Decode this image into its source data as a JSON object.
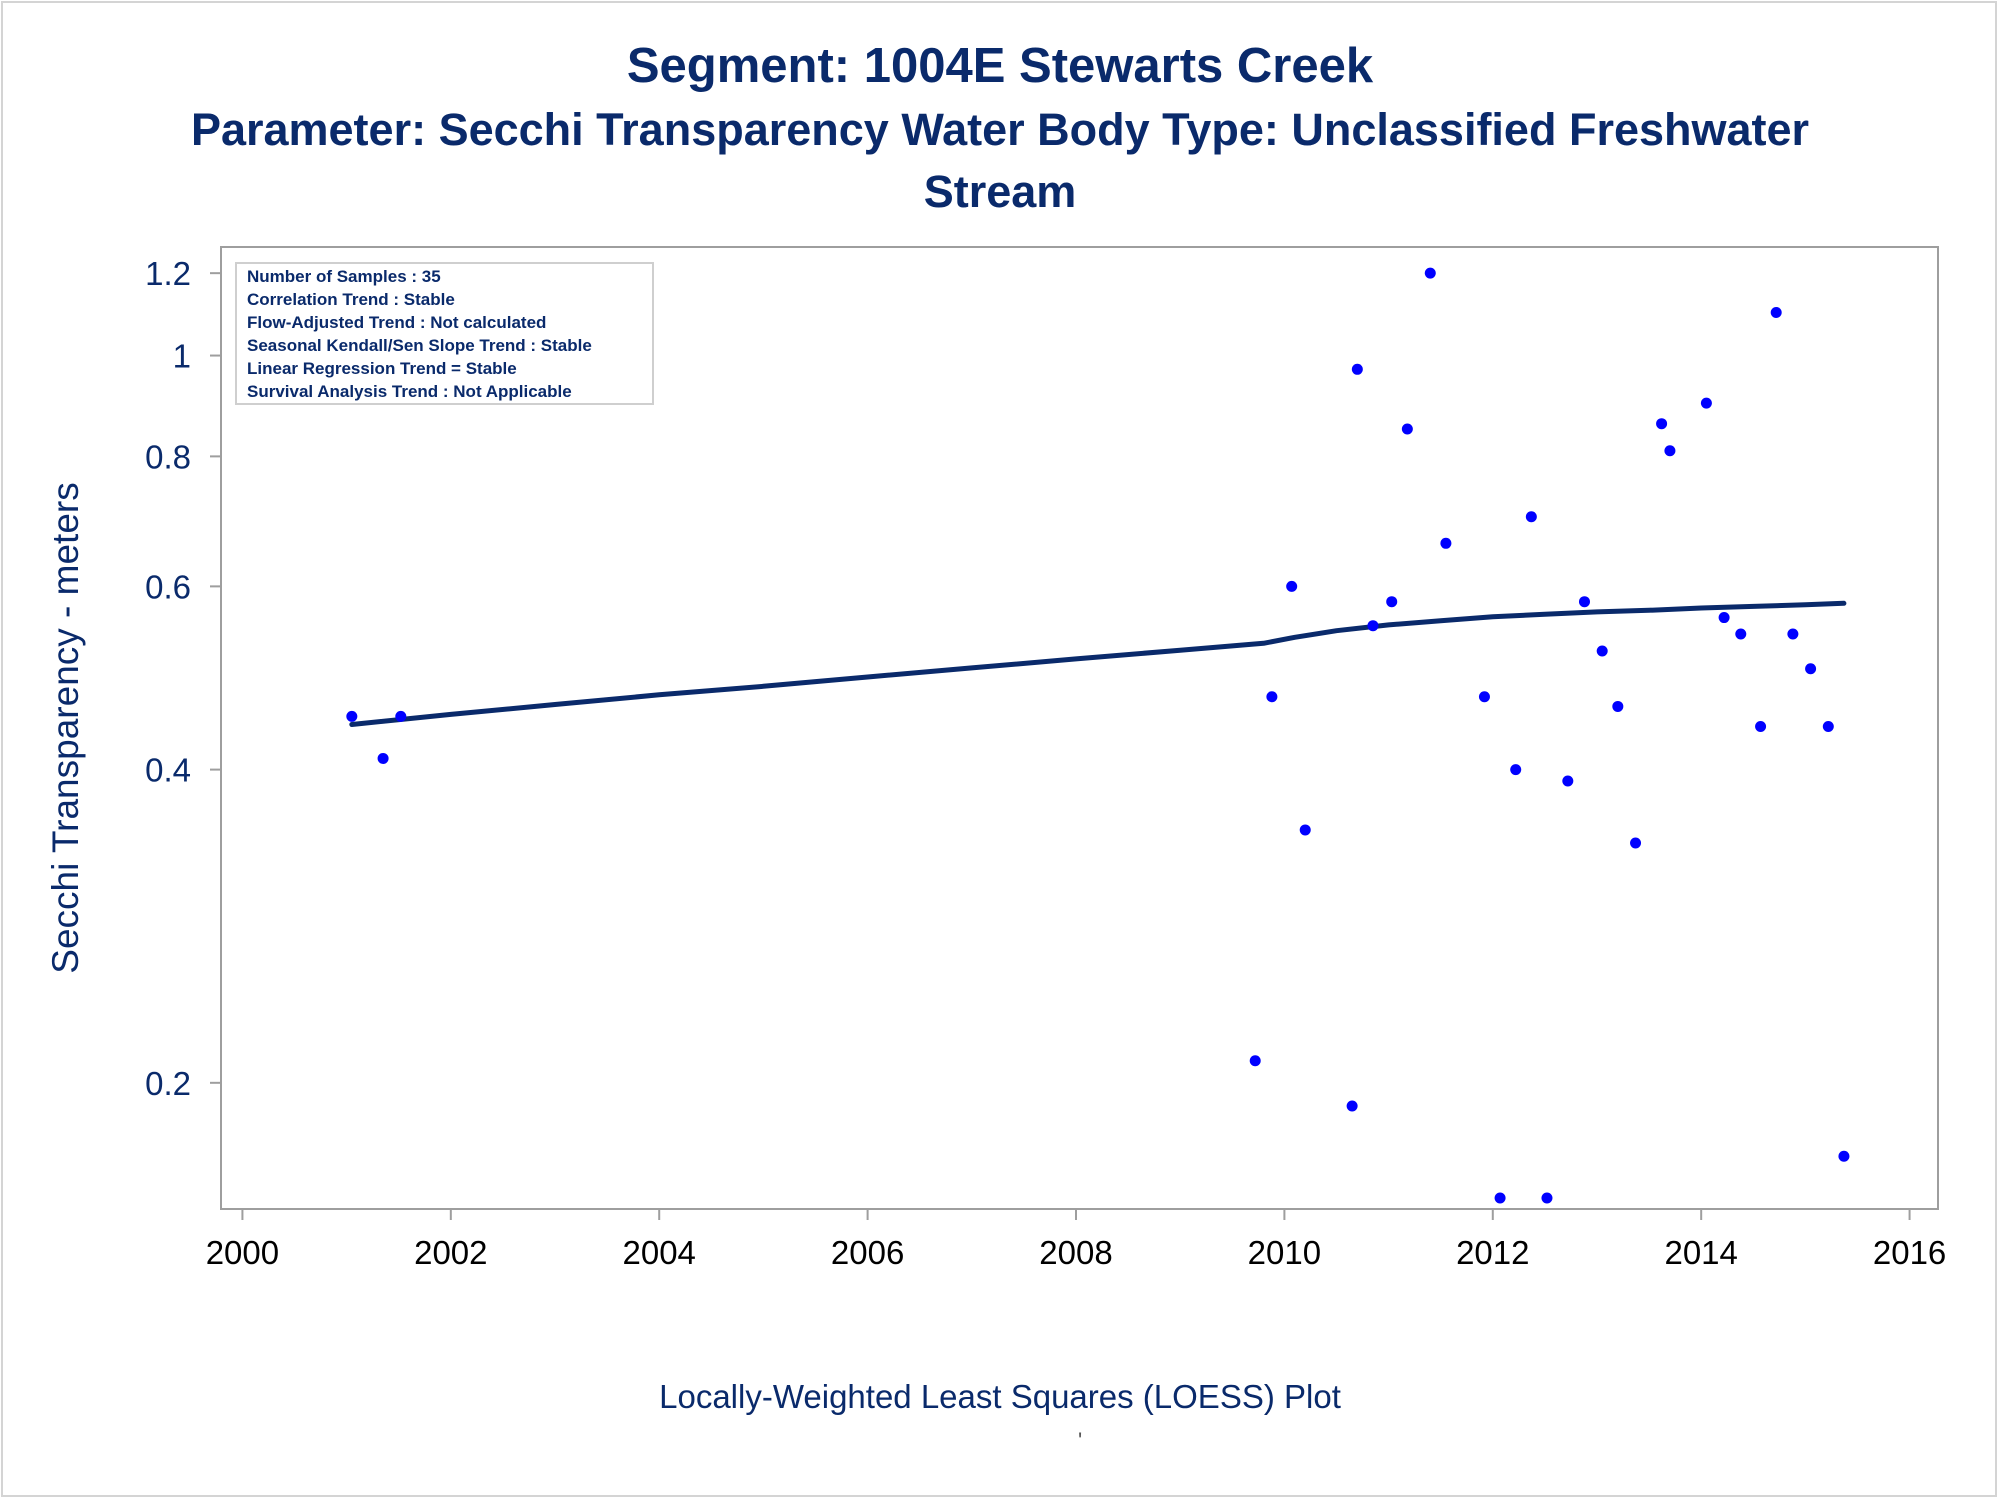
{
  "chart_data": {
    "type": "scatter",
    "title": "Segment: 1004E  Stewarts Creek",
    "subtitle": [
      "Parameter: Secchi Transparency   Water Body Type: Unclassified Freshwater",
      "Stream"
    ],
    "ylabel": "Secchi Transparency - meters",
    "xlabel": "",
    "footnote": "Locally-Weighted Least Squares (LOESS) Plot",
    "footnote_mark": "'",
    "yscale": "log",
    "xlim": [
      1999.9,
      2016.1
    ],
    "ylim": [
      0.155,
      1.23
    ],
    "x_ticks": [
      2000,
      2002,
      2004,
      2006,
      2008,
      2010,
      2012,
      2014,
      2016
    ],
    "y_ticks": [
      0.2,
      0.4,
      0.6,
      0.8,
      1,
      1.2
    ],
    "y_tick_labels": [
      "0.2",
      "0.4",
      "0.6",
      "0.8",
      "1",
      "1.2"
    ],
    "grid": false,
    "colors": {
      "points": "#0000ff",
      "line": "#0a2a6b",
      "text": "#0a2a6b",
      "axis": "#9e9e9e"
    },
    "stats_box": [
      "Number of Samples : 35",
      "Correlation Trend : Stable",
      "Flow-Adjusted Trend : Not calculated",
      "Seasonal Kendall/Sen Slope Trend : Stable",
      "Linear Regression Trend = Stable",
      "Survival Analysis Trend : Not Applicable"
    ],
    "series": [
      {
        "type": "scatter",
        "x": [
          2001.05,
          2001.35,
          2001.52,
          2009.72,
          2009.88,
          2010.07,
          2010.2,
          2010.65,
          2010.7,
          2010.85,
          2011.03,
          2011.18,
          2011.4,
          2011.55,
          2011.92,
          2012.07,
          2012.22,
          2012.37,
          2012.52,
          2012.72,
          2012.88,
          2013.05,
          2013.2,
          2013.37,
          2013.62,
          2013.7,
          2014.05,
          2014.22,
          2014.38,
          2014.57,
          2014.72,
          2014.88,
          2015.05,
          2015.22,
          2015.37
        ],
        "y": [
          0.45,
          0.41,
          0.45,
          0.21,
          0.47,
          0.6,
          0.35,
          0.19,
          0.97,
          0.55,
          0.58,
          0.85,
          1.2,
          0.66,
          0.47,
          0.155,
          0.4,
          0.7,
          0.155,
          0.39,
          0.58,
          0.52,
          0.46,
          0.34,
          0.86,
          0.81,
          0.9,
          0.56,
          0.54,
          0.44,
          1.1,
          0.54,
          0.5,
          0.44,
          0.17
        ]
      },
      {
        "type": "line",
        "x": [
          2001.05,
          2002,
          2003,
          2004,
          2005,
          2006,
          2007,
          2008,
          2009,
          2009.8,
          2010.1,
          2010.5,
          2011,
          2011.5,
          2012,
          2012.5,
          2013,
          2013.5,
          2014,
          2014.5,
          2015,
          2015.37
        ],
        "y": [
          0.442,
          0.452,
          0.462,
          0.472,
          0.481,
          0.491,
          0.501,
          0.511,
          0.521,
          0.529,
          0.536,
          0.544,
          0.551,
          0.556,
          0.561,
          0.564,
          0.567,
          0.569,
          0.572,
          0.574,
          0.576,
          0.578
        ]
      }
    ]
  }
}
